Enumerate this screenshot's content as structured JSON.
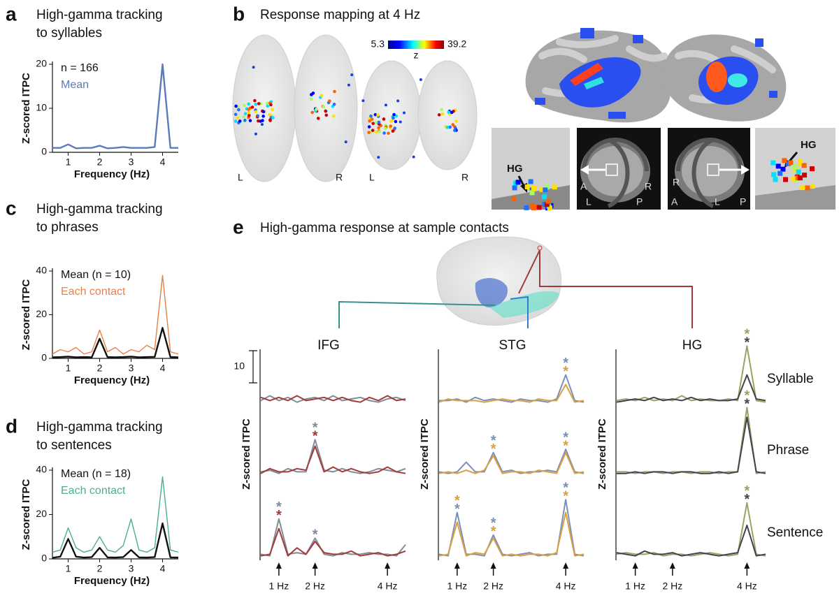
{
  "chart_data": [
    {
      "type": "line",
      "letter": "a",
      "title": [
        "High-gamma tracking",
        "to syllables"
      ],
      "xlabel": "Frequency (Hz)",
      "ylabel": "Z-scored ITPC",
      "x": [
        0.5,
        0.75,
        1,
        1.25,
        1.5,
        1.75,
        2,
        2.25,
        2.5,
        2.75,
        3,
        3.25,
        3.5,
        3.75,
        4,
        4.25,
        4.5
      ],
      "xlim": [
        0.5,
        4.5
      ],
      "xticks": [
        1,
        2,
        3,
        4
      ],
      "ylim": [
        0,
        20
      ],
      "yticks": [
        0,
        10,
        20
      ],
      "annotations": [
        "n = 166"
      ],
      "series": [
        {
          "name": "Mean",
          "color": "#5b7bb8",
          "values": [
            1,
            1,
            1.8,
            0.9,
            1,
            1,
            1.5,
            0.9,
            1,
            1.2,
            1,
            1,
            1,
            1.2,
            20,
            1,
            1
          ]
        }
      ]
    },
    {
      "type": "line",
      "letter": "c",
      "title": [
        "High-gamma tracking",
        "to phrases"
      ],
      "xlabel": "Frequency (Hz)",
      "ylabel": "Z-scored ITPC",
      "x": [
        0.5,
        0.75,
        1,
        1.25,
        1.5,
        1.75,
        2,
        2.25,
        2.5,
        2.75,
        3,
        3.25,
        3.5,
        3.75,
        4,
        4.25,
        4.5
      ],
      "xlim": [
        0.5,
        4.5
      ],
      "xticks": [
        1,
        2,
        3,
        4
      ],
      "ylim": [
        0,
        40
      ],
      "yticks": [
        0,
        20,
        40
      ],
      "annotations": [],
      "series": [
        {
          "name": "Mean (n = 10)",
          "color": "#111111",
          "values": [
            0.5,
            0.6,
            0.8,
            0.5,
            0.6,
            0.5,
            9,
            0.6,
            0.5,
            0.6,
            0.8,
            0.5,
            0.6,
            0.7,
            14,
            0.6,
            0.5
          ]
        },
        {
          "name": "Each contact",
          "color": "#e8804a",
          "values": [
            2,
            4,
            3,
            5,
            2,
            3,
            13,
            3,
            5,
            2,
            4,
            3,
            6,
            4,
            38,
            3,
            2
          ]
        }
      ]
    },
    {
      "type": "line",
      "letter": "d",
      "title": [
        "High-gamma tracking",
        "to sentences"
      ],
      "xlabel": "Frequency (Hz)",
      "ylabel": "Z-scored ITPC",
      "x": [
        0.5,
        0.75,
        1,
        1.25,
        1.5,
        1.75,
        2,
        2.25,
        2.5,
        2.75,
        3,
        3.25,
        3.5,
        3.75,
        4,
        4.25,
        4.5
      ],
      "xlim": [
        0.5,
        4.5
      ],
      "xticks": [
        1,
        2,
        3,
        4
      ],
      "ylim": [
        0,
        40
      ],
      "yticks": [
        0,
        20,
        40
      ],
      "annotations": [],
      "series": [
        {
          "name": "Mean (n = 18)",
          "color": "#111111",
          "values": [
            0.5,
            1,
            9,
            1,
            0.6,
            0.8,
            5,
            0.7,
            0.6,
            0.8,
            4,
            0.7,
            0.6,
            0.8,
            16,
            0.7,
            0.6
          ]
        },
        {
          "name": "Each contact",
          "color": "#4caf8a",
          "values": [
            3,
            4,
            14,
            5,
            3,
            4,
            10,
            4,
            3,
            6,
            18,
            4,
            3,
            5,
            37,
            4,
            3
          ]
        }
      ]
    },
    {
      "type": "line-grid",
      "letter": "e",
      "title": "High-gamma response at sample contacts",
      "ylabel": "Z-scored ITPC",
      "columns": [
        "IFG",
        "STG",
        "HG"
      ],
      "rows": [
        "Syllable",
        "Phrase",
        "Sentence"
      ],
      "scale_bar": 10,
      "x": [
        0.5,
        0.75,
        1,
        1.25,
        1.5,
        1.75,
        2,
        2.25,
        2.5,
        2.75,
        3,
        3.25,
        3.5,
        3.75,
        4,
        4.25,
        4.5
      ],
      "xlim": [
        0.5,
        4.5
      ],
      "ylim": [
        0,
        22
      ],
      "xticks": [
        {
          "value": 1,
          "label": "1 Hz"
        },
        {
          "value": 2,
          "label": "2 Hz"
        },
        {
          "value": 4,
          "label": "4 Hz"
        }
      ],
      "panels": [
        {
          "series": [
            {
              "color": "#7f8c9a",
              "values": [
                1,
                2.5,
                1,
                2,
                0.5,
                1.5,
                2,
                1,
                2.5,
                1,
                1.5,
                2,
                1,
                0.5,
                1.5,
                2,
                1
              ]
            },
            {
              "color": "#a33a3a",
              "values": [
                2,
                1,
                2,
                1,
                2.5,
                1,
                1.5,
                2,
                1,
                2,
                1,
                0.5,
                2,
                1,
                2.5,
                1,
                1.5
              ]
            }
          ],
          "stars": []
        },
        {
          "series": [
            {
              "color": "#7a90b8",
              "values": [
                1,
                1,
                1.5,
                0.5,
                2,
                1,
                1.5,
                1,
                0.5,
                1.5,
                1,
                1,
                0.5,
                1.5,
                9,
                1,
                0.5
              ]
            },
            {
              "color": "#d9a040",
              "values": [
                0.5,
                1.5,
                1,
                1,
                1,
                0.5,
                1,
                1.5,
                1,
                1,
                0.5,
                1.5,
                1,
                1,
                6,
                0.5,
                1
              ]
            }
          ],
          "stars": [
            {
              "x": 4,
              "text": "*",
              "color": "#7a90b8"
            },
            {
              "x": 4,
              "text": "*",
              "color": "#d9a040"
            }
          ]
        },
        {
          "series": [
            {
              "color": "#9aa360",
              "values": [
                1,
                1.5,
                1,
                2,
                1,
                1.5,
                1,
                2.5,
                1,
                1.5,
                1,
                1,
                1.5,
                1,
                18,
                1,
                0.5
              ]
            },
            {
              "color": "#3d4550",
              "values": [
                0.5,
                1,
                1.5,
                1,
                2,
                1,
                1.5,
                1,
                2,
                1,
                1.5,
                1,
                1,
                1.5,
                9,
                1.5,
                1
              ]
            }
          ],
          "stars": [
            {
              "x": 4,
              "text": "*",
              "color": "#9aa360"
            },
            {
              "x": 4,
              "text": "*",
              "color": "#3d4550"
            }
          ]
        },
        {
          "series": [
            {
              "color": "#7f8c9a",
              "values": [
                1,
                1.5,
                0.5,
                2,
                1,
                1,
                11,
                1.5,
                1,
                2,
                1,
                0.5,
                1,
                2,
                1.5,
                1,
                2
              ]
            },
            {
              "color": "#a33a3a",
              "values": [
                0.5,
                2,
                1,
                1,
                2,
                1.5,
                9,
                1,
                2.5,
                1,
                2,
                1,
                0.5,
                1,
                2.5,
                1,
                0.5
              ]
            }
          ],
          "stars": [
            {
              "x": 2,
              "text": "*",
              "color": "#7f8c9a"
            },
            {
              "x": 2,
              "text": "*",
              "color": "#a33a3a"
            }
          ]
        },
        {
          "series": [
            {
              "color": "#7a90b8",
              "values": [
                1,
                0.5,
                1,
                4,
                1,
                1,
                7,
                1,
                1.5,
                0.5,
                1,
                1,
                1.5,
                1,
                8,
                1,
                0.5
              ]
            },
            {
              "color": "#d9a040",
              "values": [
                0.5,
                1,
                0.5,
                1.5,
                0.5,
                1.5,
                6,
                0.5,
                1,
                1,
                0.5,
                1.5,
                1,
                0.5,
                7,
                0.5,
                1
              ]
            }
          ],
          "stars": [
            {
              "x": 2,
              "text": "*",
              "color": "#7a90b8"
            },
            {
              "x": 2,
              "text": "*",
              "color": "#d9a040"
            },
            {
              "x": 4,
              "text": "*",
              "color": "#7a90b8"
            },
            {
              "x": 4,
              "text": "*",
              "color": "#d9a040"
            }
          ]
        },
        {
          "series": [
            {
              "color": "#9aa360",
              "values": [
                1,
                1,
                0.5,
                1,
                1,
                0.5,
                1,
                1,
                0.5,
                1,
                1,
                0.5,
                1,
                1,
                21,
                0.5,
                1
              ]
            },
            {
              "color": "#3d4550",
              "values": [
                0.5,
                0.5,
                1,
                0.5,
                1,
                1,
                0.5,
                1,
                1,
                0.5,
                0.5,
                1,
                0.5,
                1,
                18,
                1,
                0.5
              ]
            }
          ],
          "stars": [
            {
              "x": 4,
              "text": "*",
              "color": "#9aa360"
            },
            {
              "x": 4,
              "text": "*",
              "color": "#3d4550"
            }
          ]
        },
        {
          "series": [
            {
              "color": "#7f8c9a",
              "values": [
                1,
                0.5,
                12,
                1,
                1.5,
                1,
                6,
                1,
                0.5,
                1.5,
                1,
                1,
                1.5,
                1,
                1,
                0.5,
                4
              ]
            },
            {
              "color": "#a33a3a",
              "values": [
                0.5,
                1,
                9,
                0.5,
                3,
                1,
                5,
                1.5,
                1,
                1,
                2,
                0.5,
                1,
                1.5,
                0.5,
                1,
                2
              ]
            }
          ],
          "stars": [
            {
              "x": 1,
              "text": "*",
              "color": "#7f8c9a"
            },
            {
              "x": 1,
              "text": "*",
              "color": "#a33a3a"
            },
            {
              "x": 2,
              "text": "*",
              "color": "#7f8c9a"
            }
          ]
        },
        {
          "series": [
            {
              "color": "#7a90b8",
              "values": [
                1,
                0.5,
                14,
                1,
                1,
                0.5,
                7,
                1,
                0.5,
                1,
                1.5,
                0.5,
                1,
                1,
                18,
                1,
                0.5
              ]
            },
            {
              "color": "#d9a040",
              "values": [
                0.5,
                1,
                11,
                0.5,
                1.5,
                1,
                6,
                0.5,
                1,
                0.5,
                1,
                1,
                0.5,
                1.5,
                14,
                0.5,
                1
              ]
            }
          ],
          "stars": [
            {
              "x": 1,
              "text": "*",
              "color": "#d9a040"
            },
            {
              "x": 1,
              "text": "*",
              "color": "#7a90b8"
            },
            {
              "x": 2,
              "text": "*",
              "color": "#7a90b8"
            },
            {
              "x": 2,
              "text": "*",
              "color": "#d9a040"
            },
            {
              "x": 4,
              "text": "*",
              "color": "#7a90b8"
            },
            {
              "x": 4,
              "text": "*",
              "color": "#d9a040"
            }
          ]
        },
        {
          "series": [
            {
              "color": "#9aa360",
              "values": [
                1,
                1.5,
                1,
                1,
                1.5,
                0.5,
                1,
                1,
                0.5,
                1,
                1.5,
                1,
                0.5,
                1,
                17,
                1,
                0.5
              ]
            },
            {
              "color": "#3d4550",
              "values": [
                1.5,
                1,
                0.5,
                2,
                1,
                1,
                1.5,
                0.5,
                1,
                1.5,
                1,
                0.5,
                1,
                1.5,
                10,
                0.5,
                1
              ]
            }
          ],
          "stars": [
            {
              "x": 4,
              "text": "*",
              "color": "#9aa360"
            },
            {
              "x": 4,
              "text": "*",
              "color": "#3d4550"
            }
          ]
        }
      ]
    }
  ],
  "mapping": {
    "letter": "b",
    "title": "Response mapping at 4 Hz",
    "colorbar": {
      "min": 5.3,
      "max": 39.2,
      "label": "z"
    },
    "view_labels": [
      "L",
      "R",
      "L",
      "R"
    ],
    "hg_labels": [
      "HG",
      "HG"
    ],
    "orientation_labels": [
      [
        "A",
        "L",
        "R",
        "P"
      ],
      [
        "R",
        "A",
        "L",
        "P"
      ]
    ]
  }
}
